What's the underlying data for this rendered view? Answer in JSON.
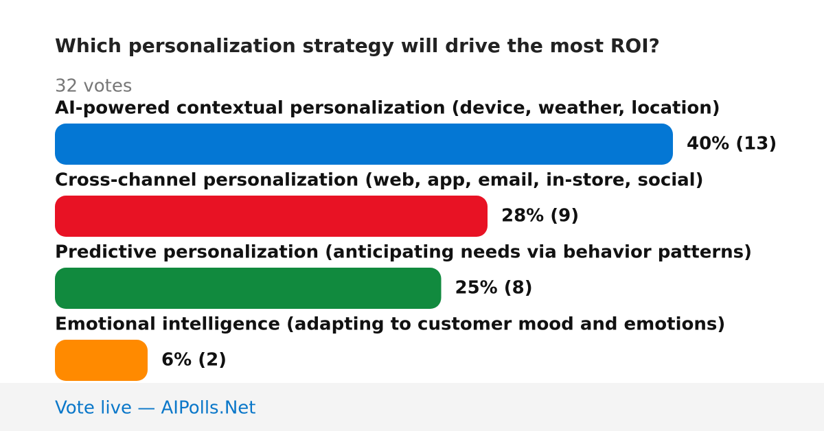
{
  "chart_data": {
    "type": "bar",
    "orientation": "horizontal",
    "title": "Which personalization strategy will drive the most ROI?",
    "subtitle": "32 votes",
    "categories": [
      "AI-powered contextual personalization (device, weather, location)",
      "Cross-channel personalization (web, app, email, in-store, social)",
      "Predictive personalization (anticipating needs via behavior patterns)",
      "Emotional intelligence (adapting to customer mood and emotions)"
    ],
    "values": [
      40,
      28,
      25,
      6
    ],
    "value_labels": [
      "40% (13)",
      "28% (9)",
      "25% (8)",
      "6% (2)"
    ],
    "colors": [
      "#0477d4",
      "#e81224",
      "#118a3e",
      "#ff8a00"
    ],
    "footer": "Vote live — AIPolls.Net"
  }
}
